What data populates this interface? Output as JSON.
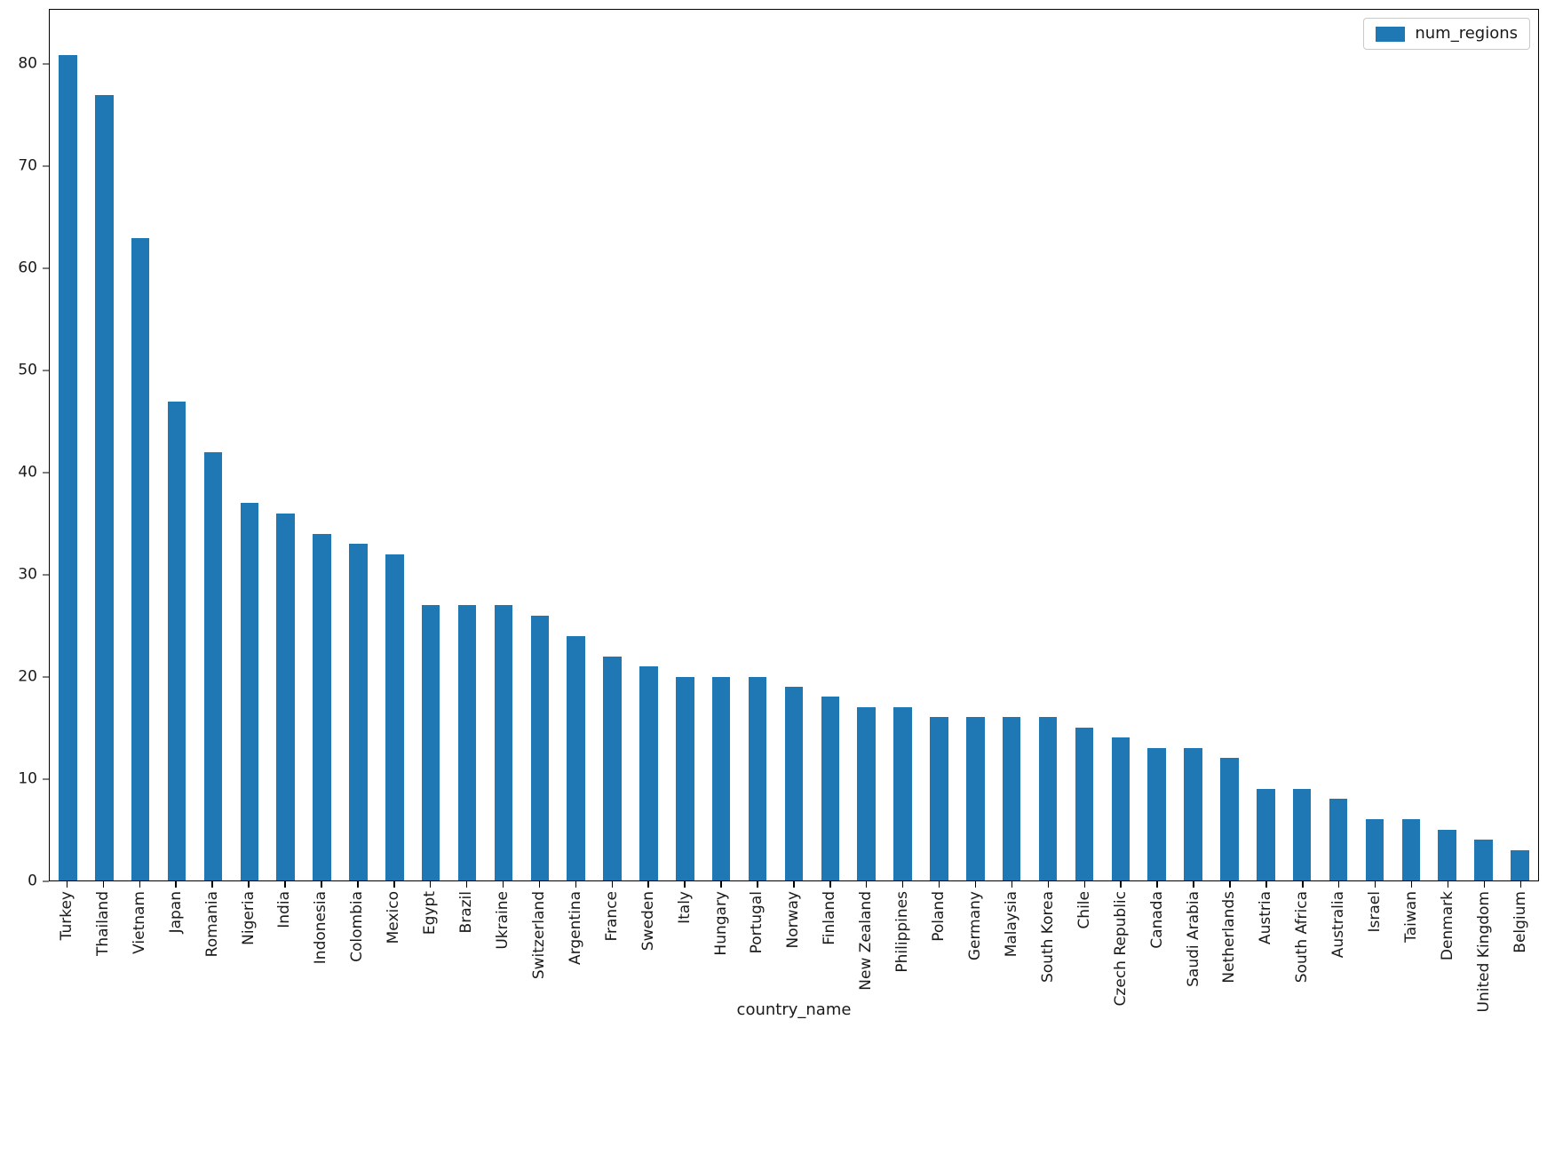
{
  "chart_data": {
    "type": "bar",
    "title": "",
    "xlabel": "country_name",
    "ylabel": "",
    "legend": {
      "label": "num_regions",
      "position": "upper right"
    },
    "bar_color": "#1f77b4",
    "axis_color": "#000000",
    "background": "#ffffff",
    "grid": false,
    "ylim": [
      0,
      85.4
    ],
    "yticks": [
      0,
      10,
      20,
      30,
      40,
      50,
      60,
      70,
      80
    ],
    "categories": [
      "Turkey",
      "Thailand",
      "Vietnam",
      "Japan",
      "Romania",
      "Nigeria",
      "India",
      "Indonesia",
      "Colombia",
      "Mexico",
      "Egypt",
      "Brazil",
      "Ukraine",
      "Switzerland",
      "Argentina",
      "France",
      "Sweden",
      "Italy",
      "Hungary",
      "Portugal",
      "Norway",
      "Finland",
      "New Zealand",
      "Philippines",
      "Poland",
      "Germany",
      "Malaysia",
      "South Korea",
      "Chile",
      "Czech Republic",
      "Canada",
      "Saudi Arabia",
      "Netherlands",
      "Austria",
      "South Africa",
      "Australia",
      "Israel",
      "Taiwan",
      "Denmark",
      "United Kingdom",
      "Belgium"
    ],
    "values": [
      81,
      77,
      63,
      47,
      42,
      37,
      36,
      34,
      33,
      32,
      27,
      27,
      27,
      26,
      24,
      22,
      21,
      20,
      20,
      20,
      19,
      18,
      17,
      17,
      16,
      16,
      16,
      16,
      15,
      14,
      13,
      13,
      12,
      9,
      9,
      8,
      6,
      6,
      5,
      4,
      3
    ]
  }
}
